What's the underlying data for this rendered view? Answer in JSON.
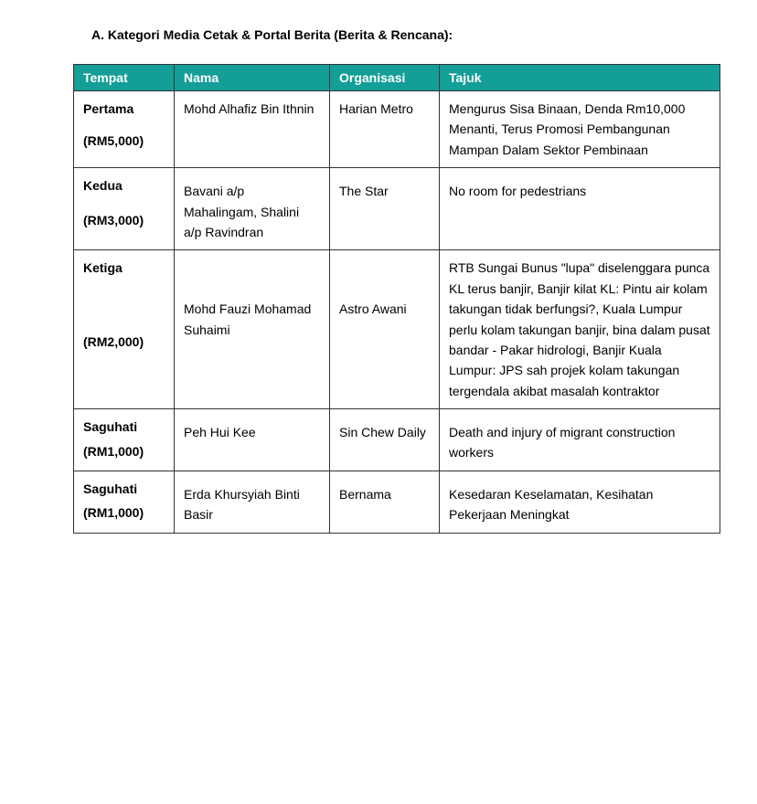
{
  "heading": "A.  Kategori Media Cetak & Portal Berita (Berita & Rencana):",
  "columns": {
    "tempat": "Tempat",
    "nama": "Nama",
    "organisasi": "Organisasi",
    "tajuk": "Tajuk"
  },
  "rows": [
    {
      "place": "Pertama",
      "prize": "(RM5,000)",
      "nama": "Mohd Alhafiz Bin Ithnin",
      "org": "Harian Metro",
      "tajuk": "Mengurus Sisa Binaan, Denda Rm10,000 Menanti, Terus Promosi Pembangunan Mampan Dalam Sektor  Pembinaan"
    },
    {
      "place": "Kedua",
      "prize": "(RM3,000)",
      "nama": "Bavani a/p Mahalingam, Shalini a/p Ravindran",
      "org": "The Star",
      "tajuk": "No room for pedestrians"
    },
    {
      "place": "Ketiga",
      "prize": "(RM2,000)",
      "nama": "Mohd Fauzi Mohamad  Suhaimi",
      "org": "Astro Awani",
      "tajuk": "RTB Sungai Bunus \"lupa\" diselenggara punca KL terus banjir,  Banjir kilat KL: Pintu air kolam takungan tidak berfungsi?,  Kuala Lumpur perlu kolam takungan banjir, bina dalam pusat bandar - Pakar hidrologi, Banjir Kuala Lumpur: JPS sah projek kolam takungan  tergendala akibat masalah kontraktor"
    },
    {
      "place": "Saguhati",
      "prize": "(RM1,000)",
      "nama": "Peh Hui Kee",
      "org": "Sin Chew Daily",
      "tajuk": "Death and injury of migrant construction workers"
    },
    {
      "place": "Saguhati",
      "prize": "(RM1,000)",
      "nama": "Erda Khursyiah Binti Basir",
      "org": "Bernama",
      "tajuk": "Kesedaran Keselamatan, Kesihatan Pekerjaan Meningkat"
    }
  ]
}
